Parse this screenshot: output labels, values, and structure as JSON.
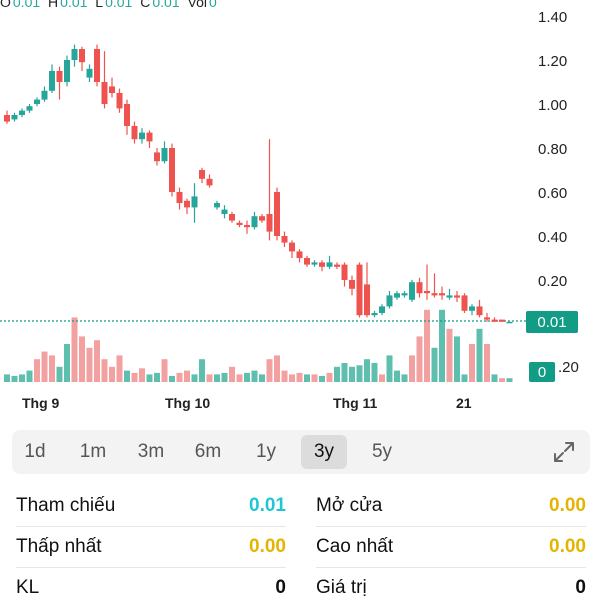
{
  "ohlc": {
    "o_label": "O",
    "o": "0.01",
    "h_label": "H",
    "h": "0.01",
    "l_label": "L",
    "l": "0.01",
    "c_label": "C",
    "c": "0.01",
    "vol_label": "Vol",
    "vol": "0"
  },
  "price_tag": "0.01",
  "volume_tag": "0",
  "colors": {
    "up": "#26a69a",
    "down": "#ef5350",
    "vol_up": "#5fbfaf",
    "vol_down": "#f3a0a0",
    "tag": "#129c86",
    "ref": "#1fc6d6",
    "gold": "#e5b400"
  },
  "chart_data": {
    "type": "candlestick",
    "y_ticks": [
      "1.40",
      "1.20",
      "1.00",
      "0.80",
      "0.60",
      "0.40",
      "0.20"
    ],
    "y_range": [
      0,
      1.4
    ],
    "x_labels": [
      "Thg 9",
      "Thg 10",
      "Thg 11",
      "21"
    ],
    "reference_line": 0.01,
    "candles": [
      [
        0.95,
        0.92,
        0.97,
        0.91
      ],
      [
        0.93,
        0.95,
        0.96,
        0.92
      ],
      [
        0.95,
        0.97,
        0.98,
        0.94
      ],
      [
        0.97,
        0.99,
        1.0,
        0.96
      ],
      [
        1.0,
        1.02,
        1.03,
        0.99
      ],
      [
        1.02,
        1.06,
        1.08,
        1.01
      ],
      [
        1.06,
        1.15,
        1.18,
        1.05
      ],
      [
        1.15,
        1.1,
        1.17,
        1.02
      ],
      [
        1.1,
        1.2,
        1.22,
        1.08
      ],
      [
        1.2,
        1.25,
        1.27,
        1.17
      ],
      [
        1.25,
        1.19,
        1.26,
        1.15
      ],
      [
        1.12,
        1.16,
        1.18,
        1.1
      ],
      [
        1.25,
        1.1,
        1.27,
        1.08
      ],
      [
        1.1,
        1.0,
        1.24,
        0.98
      ],
      [
        1.08,
        1.05,
        1.12,
        1.03
      ],
      [
        1.05,
        0.98,
        1.07,
        0.96
      ],
      [
        1.0,
        0.9,
        1.02,
        0.86
      ],
      [
        0.9,
        0.84,
        0.92,
        0.82
      ],
      [
        0.84,
        0.87,
        0.89,
        0.82
      ],
      [
        0.87,
        0.83,
        0.88,
        0.8
      ],
      [
        0.78,
        0.74,
        0.8,
        0.72
      ],
      [
        0.74,
        0.8,
        0.83,
        0.73
      ],
      [
        0.8,
        0.6,
        0.82,
        0.58
      ],
      [
        0.6,
        0.55,
        0.62,
        0.52
      ],
      [
        0.56,
        0.53,
        0.57,
        0.5
      ],
      [
        0.53,
        0.58,
        0.64,
        0.46
      ],
      [
        0.7,
        0.66,
        0.71,
        0.64
      ],
      [
        0.66,
        0.63,
        0.68,
        0.62
      ],
      [
        0.53,
        0.55,
        0.56,
        0.52
      ],
      [
        0.5,
        0.52,
        0.54,
        0.48
      ],
      [
        0.5,
        0.47,
        0.51,
        0.46
      ],
      [
        0.46,
        0.45,
        0.47,
        0.44
      ],
      [
        0.45,
        0.44,
        0.47,
        0.41
      ],
      [
        0.44,
        0.49,
        0.51,
        0.43
      ],
      [
        0.49,
        0.47,
        0.5,
        0.46
      ],
      [
        0.5,
        0.42,
        0.84,
        0.38
      ],
      [
        0.6,
        0.4,
        0.62,
        0.38
      ],
      [
        0.4,
        0.37,
        0.42,
        0.35
      ],
      [
        0.37,
        0.33,
        0.38,
        0.3
      ],
      [
        0.33,
        0.3,
        0.34,
        0.28
      ],
      [
        0.3,
        0.27,
        0.31,
        0.26
      ],
      [
        0.27,
        0.28,
        0.29,
        0.26
      ],
      [
        0.28,
        0.26,
        0.29,
        0.24
      ],
      [
        0.26,
        0.28,
        0.31,
        0.25
      ],
      [
        0.27,
        0.26,
        0.28,
        0.25
      ],
      [
        0.27,
        0.2,
        0.28,
        0.17
      ],
      [
        0.2,
        0.16,
        0.22,
        0.13
      ],
      [
        0.27,
        0.04,
        0.28,
        0.03
      ],
      [
        0.18,
        0.04,
        0.28,
        0.03
      ],
      [
        0.04,
        0.05,
        0.06,
        0.03
      ],
      [
        0.05,
        0.08,
        0.09,
        0.04
      ],
      [
        0.08,
        0.13,
        0.15,
        0.07
      ],
      [
        0.12,
        0.14,
        0.15,
        0.11
      ],
      [
        0.13,
        0.14,
        0.15,
        0.12
      ],
      [
        0.11,
        0.19,
        0.2,
        0.1
      ],
      [
        0.19,
        0.14,
        0.21,
        0.12
      ],
      [
        0.15,
        0.14,
        0.27,
        0.11
      ],
      [
        0.14,
        0.13,
        0.23,
        0.12
      ],
      [
        0.14,
        0.13,
        0.17,
        0.11
      ],
      [
        0.12,
        0.13,
        0.16,
        0.11
      ],
      [
        0.13,
        0.12,
        0.15,
        0.1
      ],
      [
        0.13,
        0.06,
        0.14,
        0.05
      ],
      [
        0.06,
        0.08,
        0.09,
        0.04
      ],
      [
        0.08,
        0.04,
        0.11,
        0.03
      ],
      [
        0.03,
        0.02,
        0.05,
        0.01
      ],
      [
        0.02,
        0.01,
        0.03,
        0.01
      ],
      [
        0.02,
        0.01,
        0.02,
        0.01
      ],
      [
        0.01,
        0.01,
        0.01,
        0.01
      ]
    ],
    "volumes": [
      [
        0.1,
        1
      ],
      [
        0.08,
        1
      ],
      [
        0.1,
        1
      ],
      [
        0.15,
        1
      ],
      [
        0.3,
        0
      ],
      [
        0.4,
        0
      ],
      [
        0.35,
        0
      ],
      [
        0.2,
        1
      ],
      [
        0.5,
        1
      ],
      [
        0.85,
        0
      ],
      [
        0.6,
        0
      ],
      [
        0.45,
        0
      ],
      [
        0.55,
        0
      ],
      [
        0.3,
        0
      ],
      [
        0.2,
        0
      ],
      [
        0.35,
        0
      ],
      [
        0.15,
        1
      ],
      [
        0.12,
        0
      ],
      [
        0.18,
        0
      ],
      [
        0.1,
        1
      ],
      [
        0.12,
        1
      ],
      [
        0.3,
        0
      ],
      [
        0.08,
        1
      ],
      [
        0.12,
        0
      ],
      [
        0.15,
        0
      ],
      [
        0.1,
        1
      ],
      [
        0.3,
        1
      ],
      [
        0.1,
        0
      ],
      [
        0.1,
        1
      ],
      [
        0.12,
        1
      ],
      [
        0.2,
        0
      ],
      [
        0.1,
        0
      ],
      [
        0.12,
        1
      ],
      [
        0.15,
        1
      ],
      [
        0.1,
        1
      ],
      [
        0.3,
        0
      ],
      [
        0.35,
        0
      ],
      [
        0.15,
        0
      ],
      [
        0.1,
        0
      ],
      [
        0.12,
        0
      ],
      [
        0.1,
        1
      ],
      [
        0.1,
        0
      ],
      [
        0.08,
        1
      ],
      [
        0.12,
        0
      ],
      [
        0.2,
        1
      ],
      [
        0.25,
        1
      ],
      [
        0.2,
        1
      ],
      [
        0.22,
        1
      ],
      [
        0.3,
        1
      ],
      [
        0.25,
        1
      ],
      [
        0.1,
        0
      ],
      [
        0.35,
        1
      ],
      [
        0.15,
        1
      ],
      [
        0.1,
        1
      ],
      [
        0.35,
        0
      ],
      [
        0.6,
        0
      ],
      [
        0.95,
        0
      ],
      [
        0.45,
        1
      ],
      [
        0.95,
        1
      ],
      [
        0.7,
        0
      ],
      [
        0.6,
        1
      ],
      [
        0.1,
        1
      ],
      [
        0.5,
        0
      ],
      [
        0.7,
        1
      ],
      [
        0.5,
        0
      ],
      [
        0.1,
        1
      ],
      [
        0.05,
        0
      ],
      [
        0.05,
        1
      ]
    ]
  },
  "ranges": [
    "1d",
    "1m",
    "3m",
    "6m",
    "1y",
    "3y",
    "5y"
  ],
  "active_range": "3y",
  "stats": {
    "ref_label": "Tham chiếu",
    "ref_value": "0.01",
    "open_label": "Mở cửa",
    "open_value": "0.00",
    "low_label": "Thấp nhất",
    "low_value": "0.00",
    "high_label": "Cao nhất",
    "high_value": "0.00",
    "vol_label": "KL",
    "vol_value": "0",
    "value_label": "Giá trị",
    "value_value": "0"
  }
}
